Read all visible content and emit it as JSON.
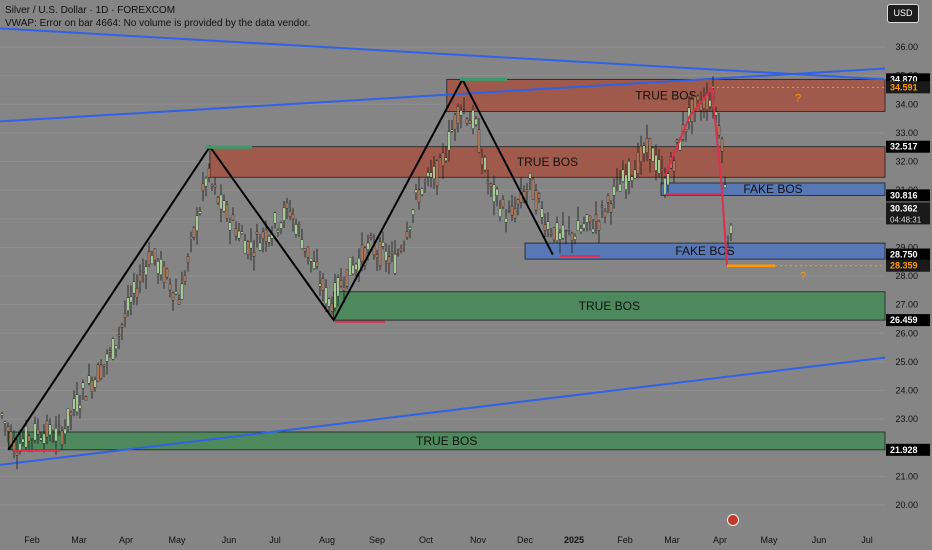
{
  "header": {
    "title": "Silver / U.S. Dollar · 1D · FOREXCOM",
    "vwap_message": "VWAP: Error on bar 4664: No volume is provided by the data vendor.",
    "currency": "USD"
  },
  "colors": {
    "background": "#858585",
    "up_candle": "#c8f5b0",
    "down_candle": "#cc8866",
    "wick": "#1a1a1a",
    "trendline": "#2f62e6",
    "zigzag": "#000000",
    "red_zone": "#a2584a",
    "green_zone": "#4b8a5a",
    "blue_zone": "#5577b8",
    "red_line": "#d8304e",
    "orange": "#ff9900",
    "price_label_bg": "#000000"
  },
  "chart_data": {
    "type": "candlestick",
    "title": "Silver / U.S. Dollar · 1D · FOREXCOM",
    "x_ticks": [
      "Feb",
      "Mar",
      "Apr",
      "May",
      "Jun",
      "Jul",
      "Aug",
      "Sep",
      "Oct",
      "Nov",
      "Dec",
      "2025",
      "Feb",
      "Mar",
      "Apr",
      "May",
      "Jun",
      "Jul"
    ],
    "y_ticks": [
      36.0,
      35.0,
      34.0,
      33.0,
      32.0,
      31.0,
      30.0,
      29.0,
      28.0,
      27.0,
      26.0,
      25.0,
      24.0,
      23.0,
      22.0,
      21.0,
      20.0
    ],
    "y_range": [
      19.5,
      37.0
    ],
    "price_labels": [
      {
        "text": "34.870",
        "kind": "level"
      },
      {
        "text": "34.591",
        "kind": "orange"
      },
      {
        "text": "32.517",
        "kind": "level"
      },
      {
        "text": "30.816",
        "kind": "level"
      },
      {
        "text": "30.362",
        "kind": "current",
        "sub": "04:48:31"
      },
      {
        "text": "28.750",
        "kind": "level"
      },
      {
        "text": "28.359",
        "kind": "orange"
      },
      {
        "text": "26.459",
        "kind": "level"
      },
      {
        "text": "21.928",
        "kind": "level"
      }
    ],
    "zones": [
      {
        "label": "TRUE BOS",
        "kind": "red",
        "from": "Oct 13",
        "to": "right",
        "y1": 34.87,
        "y2": 33.75
      },
      {
        "label": "TRUE BOS",
        "kind": "red",
        "from": "May 20",
        "to": "right",
        "y1": 32.517,
        "y2": 31.45
      },
      {
        "label": "FAKE BOS",
        "kind": "blue",
        "from": "Feb 24",
        "to": "right",
        "y1": 31.25,
        "y2": 30.816
      },
      {
        "label": "FAKE BOS",
        "kind": "blue",
        "from": "Dec 1",
        "to": "right",
        "y1": 29.15,
        "y2": 28.59
      },
      {
        "label": "TRUE BOS",
        "kind": "green",
        "from": "Aug 5",
        "to": "right",
        "y1": 27.45,
        "y2": 26.459
      },
      {
        "label": "TRUE BOS",
        "kind": "green",
        "from": "Jan 18",
        "to": "right",
        "y1": 22.55,
        "y2": 21.928
      }
    ],
    "zigzag": [
      {
        "x": "Jan 18",
        "y": 21.93
      },
      {
        "x": "May 20",
        "y": 32.52
      },
      {
        "x": "Aug 5",
        "y": 26.46
      },
      {
        "x": "Oct 22",
        "y": 34.87
      },
      {
        "x": "Dec 18",
        "y": 28.75
      }
    ],
    "trendlines": [
      {
        "from": {
          "x": "left",
          "y": 36.65
        },
        "to": {
          "x": "right",
          "y": 34.87
        }
      },
      {
        "from": {
          "x": "left",
          "y": 33.4
        },
        "to": {
          "x": "right",
          "y": 35.25
        }
      },
      {
        "from": {
          "x": "left",
          "y": 21.4
        },
        "to": {
          "x": "right",
          "y": 25.15
        }
      }
    ],
    "annotations": [
      {
        "text": "?",
        "near": 34.591
      },
      {
        "text": "?",
        "near": 28.359
      }
    ],
    "last_price": 30.362,
    "countdown": "04:48:31"
  }
}
